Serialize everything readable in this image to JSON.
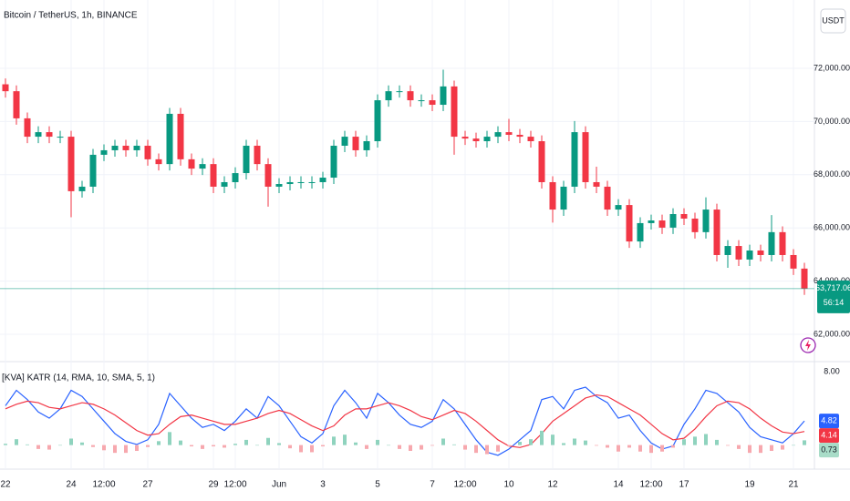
{
  "chart_data": [
    {
      "type": "candlestick",
      "title": "Bitcoin / TetherUS, 1h, BINANCE",
      "currency_button": "USDT",
      "last_price_label": "63,717.06",
      "countdown": "56:14",
      "up_color": "#089981",
      "down_color": "#f23645",
      "categories": [
        "22",
        null,
        null,
        null,
        null,
        null,
        "24",
        null,
        null,
        "12:00",
        null,
        null,
        null,
        "27",
        null,
        null,
        null,
        null,
        null,
        "29",
        null,
        "12:00",
        null,
        null,
        null,
        "Jun",
        null,
        null,
        null,
        "3",
        null,
        null,
        null,
        null,
        "5",
        null,
        null,
        null,
        null,
        "7",
        null,
        null,
        "12:00",
        null,
        null,
        null,
        "10",
        null,
        null,
        null,
        "12",
        null,
        null,
        null,
        null,
        null,
        "14",
        null,
        null,
        "12:00",
        null,
        null,
        "17",
        null,
        null,
        null,
        null,
        null,
        "19",
        null,
        null,
        null,
        "21",
        null
      ],
      "open": [
        71400,
        71140,
        70120,
        69430,
        69600,
        69430,
        69430,
        67380,
        67550,
        68750,
        68920,
        69090,
        68920,
        69090,
        68580,
        68400,
        70290,
        68580,
        68230,
        68400,
        67550,
        67720,
        68060,
        69090,
        68400,
        67550,
        67650,
        67720,
        67720,
        67720,
        67890,
        69090,
        69430,
        68920,
        69260,
        70800,
        71140,
        71140,
        70800,
        70800,
        70630,
        71320,
        69430,
        69360,
        69260,
        69430,
        69600,
        69500,
        69430,
        69260,
        67720,
        66690,
        67550,
        69600,
        67720,
        67550,
        66690,
        66860,
        65490,
        66180,
        66280,
        66010,
        66520,
        66350,
        65840,
        66690,
        64980,
        65320,
        64810,
        65150,
        64980,
        65840,
        64980,
        64470
      ],
      "high": [
        71620,
        71360,
        70340,
        69820,
        69820,
        69650,
        69650,
        67770,
        68970,
        69140,
        69310,
        69310,
        69310,
        69310,
        68800,
        70510,
        70510,
        68800,
        68620,
        68620,
        67940,
        68280,
        69310,
        69310,
        68620,
        67870,
        67940,
        67940,
        67940,
        68110,
        69310,
        69650,
        69650,
        69480,
        71020,
        71360,
        71360,
        71360,
        71020,
        71020,
        71950,
        71540,
        69650,
        69580,
        69650,
        69820,
        70100,
        69720,
        69650,
        69480,
        67940,
        67770,
        70020,
        69820,
        68300,
        67770,
        67080,
        67080,
        66400,
        66500,
        66500,
        66740,
        66740,
        66570,
        67150,
        66910,
        65540,
        65540,
        65370,
        65370,
        66480,
        66060,
        65200,
        64690
      ],
      "low": [
        70900,
        69880,
        69190,
        69190,
        69190,
        69190,
        66400,
        67140,
        67310,
        68510,
        68680,
        68680,
        68680,
        68340,
        68160,
        68160,
        68340,
        67990,
        67990,
        67310,
        67310,
        67480,
        67820,
        68160,
        66800,
        67310,
        67410,
        67480,
        67480,
        67480,
        67650,
        68850,
        68680,
        68680,
        69020,
        70560,
        70900,
        70560,
        70560,
        70390,
        70390,
        68750,
        69120,
        69020,
        69020,
        69190,
        69260,
        69190,
        69020,
        67480,
        66200,
        66450,
        67310,
        67480,
        67310,
        66450,
        66450,
        65250,
        65250,
        65940,
        65770,
        65770,
        66110,
        65600,
        65600,
        64740,
        64500,
        64570,
        64570,
        64740,
        64740,
        64740,
        64230,
        63480
      ],
      "close": [
        71140,
        70120,
        69430,
        69600,
        69430,
        69430,
        67380,
        67550,
        68750,
        68920,
        69090,
        68920,
        69090,
        68580,
        68400,
        70290,
        68580,
        68230,
        68400,
        67550,
        67720,
        68060,
        69090,
        68400,
        67550,
        67650,
        67720,
        67720,
        67720,
        67890,
        69090,
        69430,
        68920,
        69260,
        70800,
        71140,
        71140,
        70800,
        70800,
        70630,
        71320,
        69430,
        69360,
        69260,
        69430,
        69600,
        69500,
        69430,
        69260,
        67720,
        66690,
        67550,
        69600,
        67720,
        67550,
        66690,
        66860,
        65490,
        66180,
        66280,
        66010,
        66520,
        66350,
        65840,
        66690,
        64980,
        65320,
        64810,
        65150,
        64980,
        65840,
        64980,
        64470,
        63717.06
      ],
      "ylim": [
        61040,
        74570
      ],
      "yticks": [
        {
          "value": 62000,
          "label": "62,000.00"
        },
        {
          "value": 64000,
          "label": "64,000.00"
        },
        {
          "value": 66000,
          "label": "66,000.00"
        },
        {
          "value": 68000,
          "label": "68,000.00"
        },
        {
          "value": 70000,
          "label": "70,000.00"
        },
        {
          "value": 72000,
          "label": "72,000.00"
        }
      ],
      "grid": true
    },
    {
      "type": "indicator",
      "title": "[KVA] KATR (14, RMA, 10, SMA, 5, 1)",
      "ylim": [
        2.0,
        8.3
      ],
      "yticks": [
        {
          "value": 8,
          "label": "8.00"
        }
      ],
      "y2lim": [
        -3,
        12
      ],
      "series": [
        {
          "name": "KATR",
          "type": "line",
          "color": "#2962ff",
          "values": [
            5.8,
            6.8,
            6.2,
            5.4,
            5.0,
            5.6,
            6.8,
            6.4,
            5.6,
            4.8,
            4.0,
            3.5,
            3.3,
            3.6,
            4.6,
            6.6,
            5.8,
            5.0,
            4.4,
            4.6,
            4.2,
            4.8,
            5.6,
            5.0,
            6.4,
            5.8,
            4.8,
            3.8,
            3.4,
            4.0,
            5.8,
            6.8,
            6.0,
            5.0,
            6.6,
            6.0,
            5.2,
            4.6,
            4.4,
            4.8,
            6.2,
            5.6,
            4.6,
            3.6,
            2.8,
            2.6,
            3.0,
            3.6,
            4.2,
            6.2,
            6.4,
            5.6,
            6.8,
            7.0,
            6.4,
            6.0,
            5.0,
            5.2,
            4.2,
            3.4,
            3.0,
            3.2,
            4.6,
            5.6,
            6.8,
            6.6,
            6.0,
            5.4,
            4.4,
            3.8,
            3.6,
            3.4,
            4.0,
            4.82
          ]
        },
        {
          "name": "Signal",
          "type": "line",
          "color": "#f23645",
          "values": [
            5.6,
            5.9,
            6.1,
            6.0,
            5.7,
            5.6,
            5.8,
            6.0,
            5.9,
            5.6,
            5.2,
            4.7,
            4.2,
            3.9,
            4.0,
            4.6,
            5.1,
            5.2,
            5.0,
            4.8,
            4.6,
            4.6,
            4.8,
            5.0,
            5.3,
            5.5,
            5.3,
            4.9,
            4.5,
            4.2,
            4.5,
            5.2,
            5.6,
            5.6,
            5.8,
            6.0,
            5.8,
            5.5,
            5.1,
            4.9,
            5.2,
            5.5,
            5.3,
            4.8,
            4.2,
            3.6,
            3.2,
            3.1,
            3.3,
            4.0,
            4.8,
            5.3,
            5.8,
            6.3,
            6.5,
            6.4,
            6.0,
            5.6,
            5.2,
            4.6,
            4.0,
            3.6,
            3.7,
            4.3,
            5.1,
            5.8,
            6.1,
            6.0,
            5.6,
            5.0,
            4.5,
            4.1,
            4.0,
            4.14
          ]
        },
        {
          "name": "Histogram",
          "type": "histogram",
          "axis": "y2",
          "up_color": "#8fd3be",
          "down_color": "#f7a8ae",
          "tag_color": "#a8dcc8",
          "values": [
            0.2,
            0.9,
            0.1,
            -0.6,
            -0.7,
            0,
            1.0,
            0.4,
            -0.3,
            -0.8,
            -1.2,
            -1.2,
            -0.9,
            -0.3,
            0.6,
            2.0,
            0.7,
            -0.2,
            -0.6,
            -0.2,
            -0.4,
            0.2,
            0.8,
            0,
            1.1,
            0.3,
            -0.5,
            -1.1,
            -1.1,
            -0.2,
            1.3,
            1.6,
            0.4,
            -0.6,
            0.8,
            0,
            -0.6,
            -0.9,
            -0.7,
            -0.1,
            1.0,
            0.1,
            -0.7,
            -1.2,
            -1.4,
            -1.0,
            -0.2,
            0.5,
            0.9,
            2.2,
            1.6,
            0.3,
            1.0,
            0.7,
            -0.1,
            -0.4,
            -1.0,
            -0.4,
            -1.0,
            -1.2,
            -1.0,
            -0.4,
            0.9,
            1.3,
            1.7,
            0.8,
            -0.1,
            -0.6,
            -1.2,
            -1.2,
            -0.9,
            -0.7,
            0,
            0.73
          ]
        }
      ]
    }
  ]
}
